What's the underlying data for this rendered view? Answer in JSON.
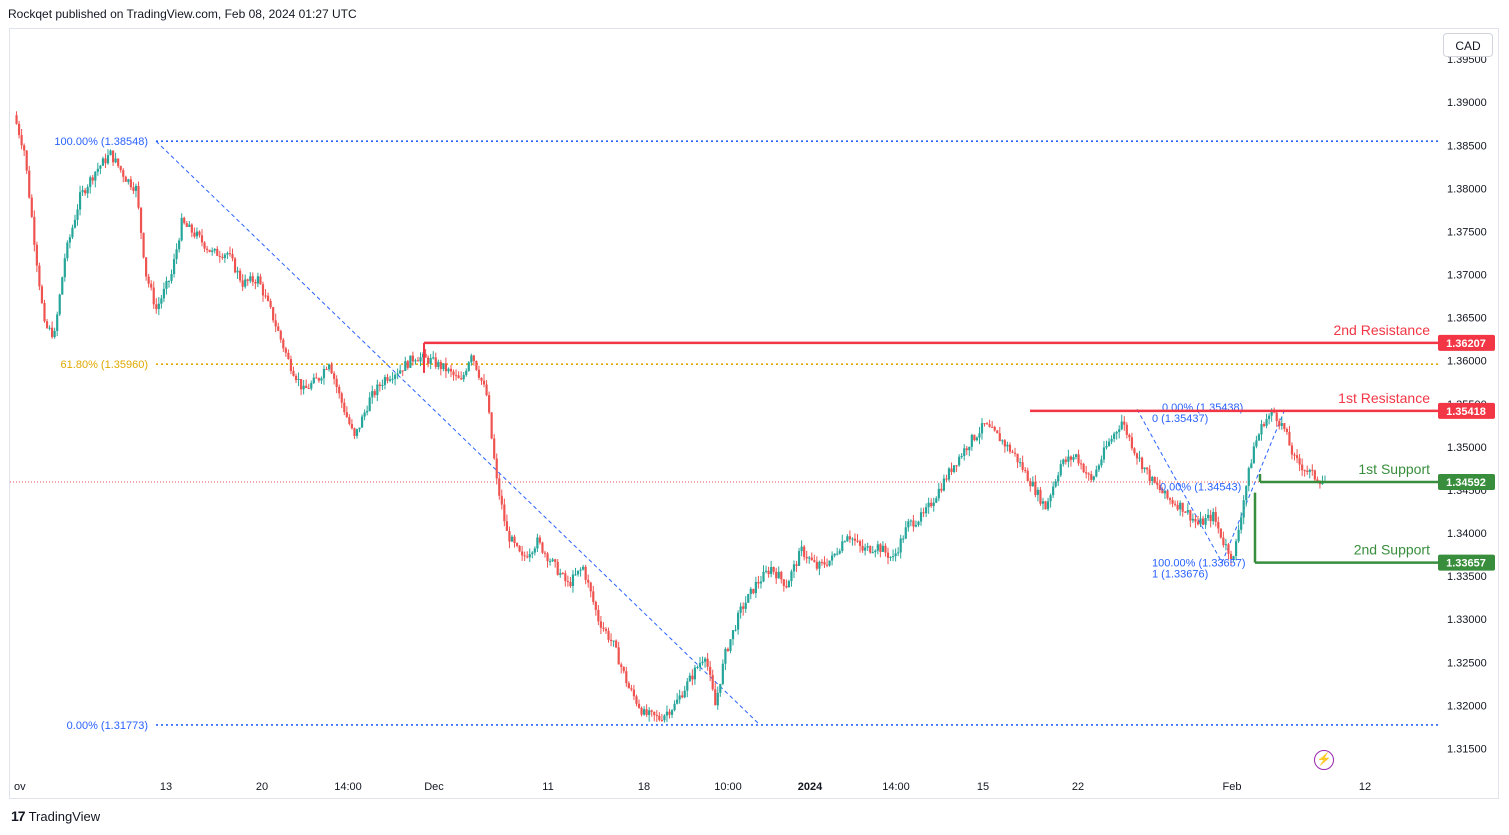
{
  "header": {
    "publisher": "Rockqet published on TradingView.com, Feb 08, 2024 01:27 UTC"
  },
  "currency": "CAD",
  "footer": {
    "brand": "TradingView",
    "logo": "tv-logo-icon"
  },
  "colors": {
    "up": "#26a69a",
    "down": "#ef5350",
    "resistance": "#f23645",
    "support": "#388e3c",
    "fib": "#2962ff",
    "fib618": "#e0a800",
    "axis_text": "#131722"
  },
  "chart_data": {
    "type": "candlestick",
    "symbol_currency": "CAD",
    "ylim": [
      1.3125,
      1.3985
    ],
    "y_ticks": [
      "1.31500",
      "1.32000",
      "1.32500",
      "1.33000",
      "1.33500",
      "1.34000",
      "1.34500",
      "1.35000",
      "1.35500",
      "1.36000",
      "1.36500",
      "1.37000",
      "1.37500",
      "1.38000",
      "1.38500",
      "1.39000",
      "1.39500"
    ],
    "x_ticks": [
      "ov",
      "13",
      "20",
      "14:00",
      "Dec",
      "11",
      "18",
      "10:00",
      "2024",
      "14:00",
      "15",
      "22",
      "Feb",
      "12"
    ],
    "levels": [
      {
        "name": "2nd Resistance",
        "value": 1.36207,
        "label": "1.36207",
        "kind": "resistance"
      },
      {
        "name": "1st Resistance",
        "value": 1.35418,
        "label": "1.35418",
        "kind": "resistance"
      },
      {
        "name": "1st Support",
        "value": 1.34592,
        "label": "1.34592",
        "kind": "support"
      },
      {
        "name": "2nd Support",
        "value": 1.33657,
        "label": "1.33657",
        "kind": "support"
      }
    ],
    "fib_levels": [
      {
        "label": "100.00% (1.38548)",
        "value": 1.38548
      },
      {
        "label": "61.80% (1.35960)",
        "value": 1.3596
      },
      {
        "label": "0.00% (1.31773)",
        "value": 1.31773
      }
    ],
    "small_fib_labels": [
      "0.00% (1.35438)",
      "0 (1.35437)",
      "0.00% (1.34543)",
      "100.00% (1.33657)",
      "1 (1.33676)"
    ],
    "current_price": 1.34592,
    "price_path": [
      [
        0,
        1.3885
      ],
      [
        4,
        1.3845
      ],
      [
        8,
        1.374
      ],
      [
        12,
        1.364
      ],
      [
        16,
        1.363
      ],
      [
        20,
        1.372
      ],
      [
        26,
        1.379
      ],
      [
        32,
        1.382
      ],
      [
        38,
        1.384
      ],
      [
        44,
        1.3812
      ],
      [
        48,
        1.38
      ],
      [
        52,
        1.37
      ],
      [
        56,
        1.366
      ],
      [
        62,
        1.37
      ],
      [
        66,
        1.376
      ],
      [
        72,
        1.3745
      ],
      [
        78,
        1.3725
      ],
      [
        84,
        1.3725
      ],
      [
        90,
        1.369
      ],
      [
        96,
        1.3695
      ],
      [
        102,
        1.365
      ],
      [
        108,
        1.36
      ],
      [
        114,
        1.3565
      ],
      [
        120,
        1.358
      ],
      [
        124,
        1.36
      ],
      [
        128,
        1.356
      ],
      [
        134,
        1.351
      ],
      [
        140,
        1.3555
      ],
      [
        146,
        1.358
      ],
      [
        152,
        1.359
      ],
      [
        158,
        1.3605
      ],
      [
        164,
        1.36
      ],
      [
        170,
        1.359
      ],
      [
        176,
        1.3575
      ],
      [
        180,
        1.361
      ],
      [
        186,
        1.356
      ],
      [
        190,
        1.346
      ],
      [
        194,
        1.34
      ],
      [
        200,
        1.337
      ],
      [
        206,
        1.339
      ],
      [
        212,
        1.3365
      ],
      [
        218,
        1.334
      ],
      [
        224,
        1.336
      ],
      [
        230,
        1.33
      ],
      [
        236,
        1.327
      ],
      [
        242,
        1.322
      ],
      [
        248,
        1.319
      ],
      [
        254,
        1.3185
      ],
      [
        260,
        1.32
      ],
      [
        266,
        1.323
      ],
      [
        272,
        1.326
      ],
      [
        276,
        1.32
      ],
      [
        280,
        1.326
      ],
      [
        286,
        1.331
      ],
      [
        292,
        1.334
      ],
      [
        298,
        1.336
      ],
      [
        304,
        1.334
      ],
      [
        310,
        1.338
      ],
      [
        316,
        1.336
      ],
      [
        322,
        1.337
      ],
      [
        328,
        1.34
      ],
      [
        334,
        1.338
      ],
      [
        340,
        1.3385
      ],
      [
        346,
        1.337
      ],
      [
        352,
        1.341
      ],
      [
        358,
        1.342
      ],
      [
        364,
        1.345
      ],
      [
        370,
        1.348
      ],
      [
        376,
        1.3505
      ],
      [
        382,
        1.3525
      ],
      [
        388,
        1.351
      ],
      [
        394,
        1.349
      ],
      [
        400,
        1.346
      ],
      [
        406,
        1.343
      ],
      [
        412,
        1.348
      ],
      [
        418,
        1.349
      ],
      [
        424,
        1.346
      ],
      [
        430,
        1.35
      ],
      [
        436,
        1.353
      ],
      [
        442,
        1.349
      ],
      [
        448,
        1.346
      ],
      [
        454,
        1.344
      ],
      [
        460,
        1.343
      ],
      [
        466,
        1.341
      ],
      [
        472,
        1.342
      ],
      [
        476,
        1.339
      ],
      [
        480,
        1.337
      ],
      [
        484,
        1.344
      ],
      [
        488,
        1.35
      ],
      [
        492,
        1.353
      ],
      [
        496,
        1.354
      ],
      [
        500,
        1.352
      ],
      [
        504,
        1.3485
      ],
      [
        508,
        1.3475
      ],
      [
        512,
        1.3465
      ],
      [
        516,
        1.3459
      ]
    ]
  }
}
